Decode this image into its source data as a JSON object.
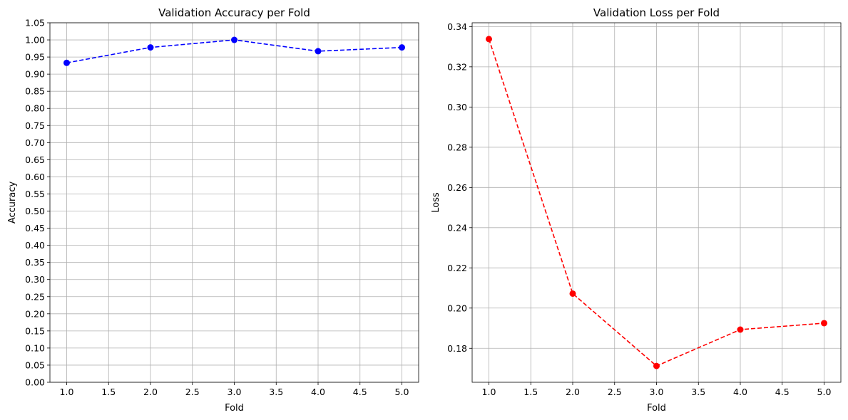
{
  "chart_data": [
    {
      "type": "line",
      "title": "Validation Accuracy per Fold",
      "xlabel": "Fold",
      "ylabel": "Accuracy",
      "x": [
        1,
        2,
        3,
        4,
        5
      ],
      "series": [
        {
          "values": [
            0.933,
            0.978,
            1.0,
            0.967,
            0.978
          ],
          "color": "#0000ff",
          "line_style": "dashed",
          "marker": "circle"
        }
      ],
      "xlim": [
        0.8,
        5.2
      ],
      "ylim": [
        0.0,
        1.05
      ],
      "xticks": [
        1.0,
        1.5,
        2.0,
        2.5,
        3.0,
        3.5,
        4.0,
        4.5,
        5.0
      ],
      "xtick_labels": [
        "1.0",
        "1.5",
        "2.0",
        "2.5",
        "3.0",
        "3.5",
        "4.0",
        "4.5",
        "5.0"
      ],
      "yticks": [
        0.0,
        0.05,
        0.1,
        0.15,
        0.2,
        0.25,
        0.3,
        0.35,
        0.4,
        0.45,
        0.5,
        0.55,
        0.6,
        0.65,
        0.7,
        0.75,
        0.8,
        0.85,
        0.9,
        0.95,
        1.0,
        1.05
      ],
      "ytick_labels": [
        "0.00",
        "0.05",
        "0.10",
        "0.15",
        "0.20",
        "0.25",
        "0.30",
        "0.35",
        "0.40",
        "0.45",
        "0.50",
        "0.55",
        "0.60",
        "0.65",
        "0.70",
        "0.75",
        "0.80",
        "0.85",
        "0.90",
        "0.95",
        "1.00",
        "1.05"
      ],
      "grid": true
    },
    {
      "type": "line",
      "title": "Validation Loss per Fold",
      "xlabel": "Fold",
      "ylabel": "Loss",
      "x": [
        1,
        2,
        3,
        4,
        5
      ],
      "series": [
        {
          "values": [
            0.3338,
            0.2072,
            0.1712,
            0.1893,
            0.1925
          ],
          "color": "#ff0000",
          "line_style": "dashed",
          "marker": "circle"
        }
      ],
      "xlim": [
        0.8,
        5.2
      ],
      "ylim": [
        0.1631,
        0.3419
      ],
      "xticks": [
        1.0,
        1.5,
        2.0,
        2.5,
        3.0,
        3.5,
        4.0,
        4.5,
        5.0
      ],
      "xtick_labels": [
        "1.0",
        "1.5",
        "2.0",
        "2.5",
        "3.0",
        "3.5",
        "4.0",
        "4.5",
        "5.0"
      ],
      "yticks": [
        0.18,
        0.2,
        0.22,
        0.24,
        0.26,
        0.28,
        0.3,
        0.32,
        0.34
      ],
      "ytick_labels": [
        "0.18",
        "0.20",
        "0.22",
        "0.24",
        "0.26",
        "0.28",
        "0.30",
        "0.32",
        "0.34"
      ],
      "grid": true
    }
  ]
}
